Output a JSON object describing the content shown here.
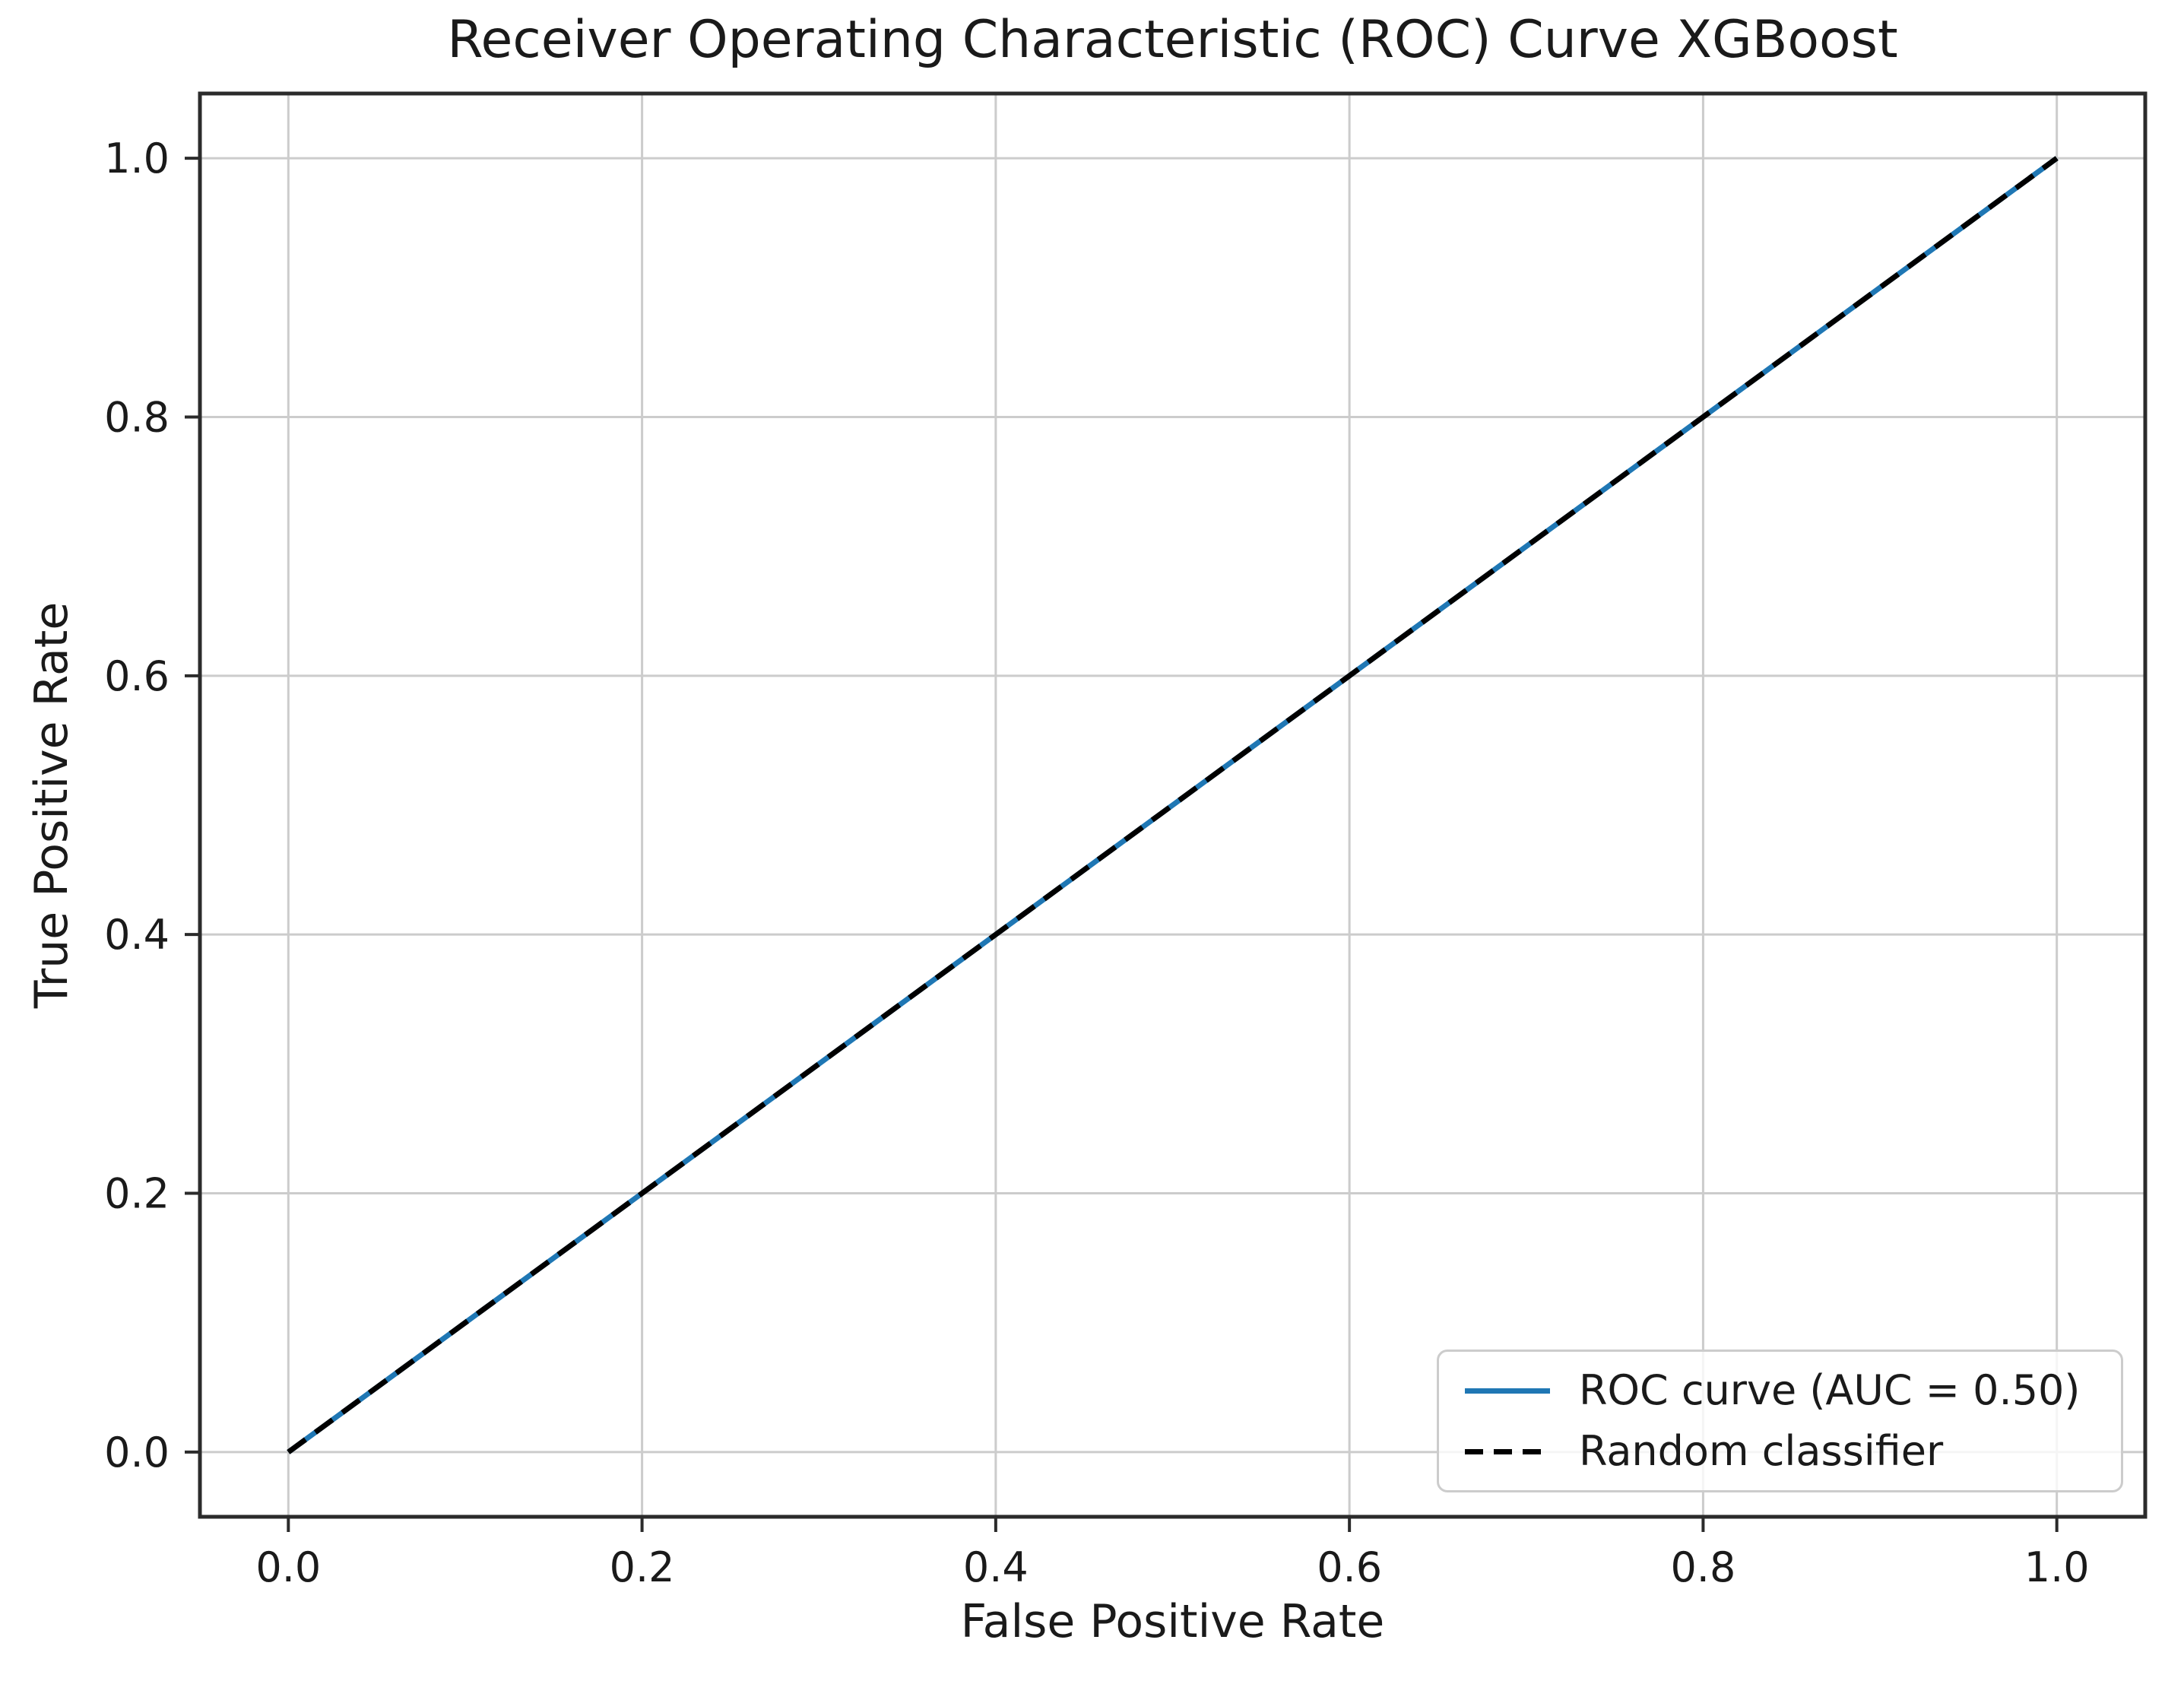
{
  "figure": {
    "background": "#ffffff",
    "text_color": "#1a1a1a",
    "spine_color": "#2b2b2b",
    "grid_color": "#cccccc"
  },
  "chart_data": {
    "type": "line",
    "title": "Receiver Operating Characteristic (ROC) Curve XGBoost",
    "xlabel": "False Positive Rate",
    "ylabel": "True Positive Rate",
    "xlim": [
      -0.05,
      1.05
    ],
    "ylim": [
      -0.05,
      1.05
    ],
    "grid": true,
    "xticks": {
      "values": [
        0.0,
        0.2,
        0.4,
        0.6,
        0.8,
        1.0
      ],
      "labels": [
        "0.0",
        "0.2",
        "0.4",
        "0.6",
        "0.8",
        "1.0"
      ]
    },
    "yticks": {
      "values": [
        0.0,
        0.2,
        0.4,
        0.6,
        0.8,
        1.0
      ],
      "labels": [
        "0.0",
        "0.2",
        "0.4",
        "0.6",
        "0.8",
        "1.0"
      ]
    },
    "series": [
      {
        "name": "ROC curve (AUC = 0.50)",
        "color": "#1f77b4",
        "line_style": "solid",
        "x": [
          0.0,
          1.0
        ],
        "y": [
          0.0,
          1.0
        ]
      },
      {
        "name": "Random classifier",
        "color": "#000000",
        "line_style": "dashed",
        "x": [
          0.0,
          1.0
        ],
        "y": [
          0.0,
          1.0
        ]
      }
    ],
    "legend": {
      "position": "lower-right",
      "items": [
        {
          "label": "ROC curve (AUC = 0.50)",
          "color": "#1f77b4",
          "line_style": "solid"
        },
        {
          "label": "Random classifier",
          "color": "#000000",
          "line_style": "dashed"
        }
      ]
    },
    "auc_value": "0.50",
    "model_name": "XGBoost"
  }
}
